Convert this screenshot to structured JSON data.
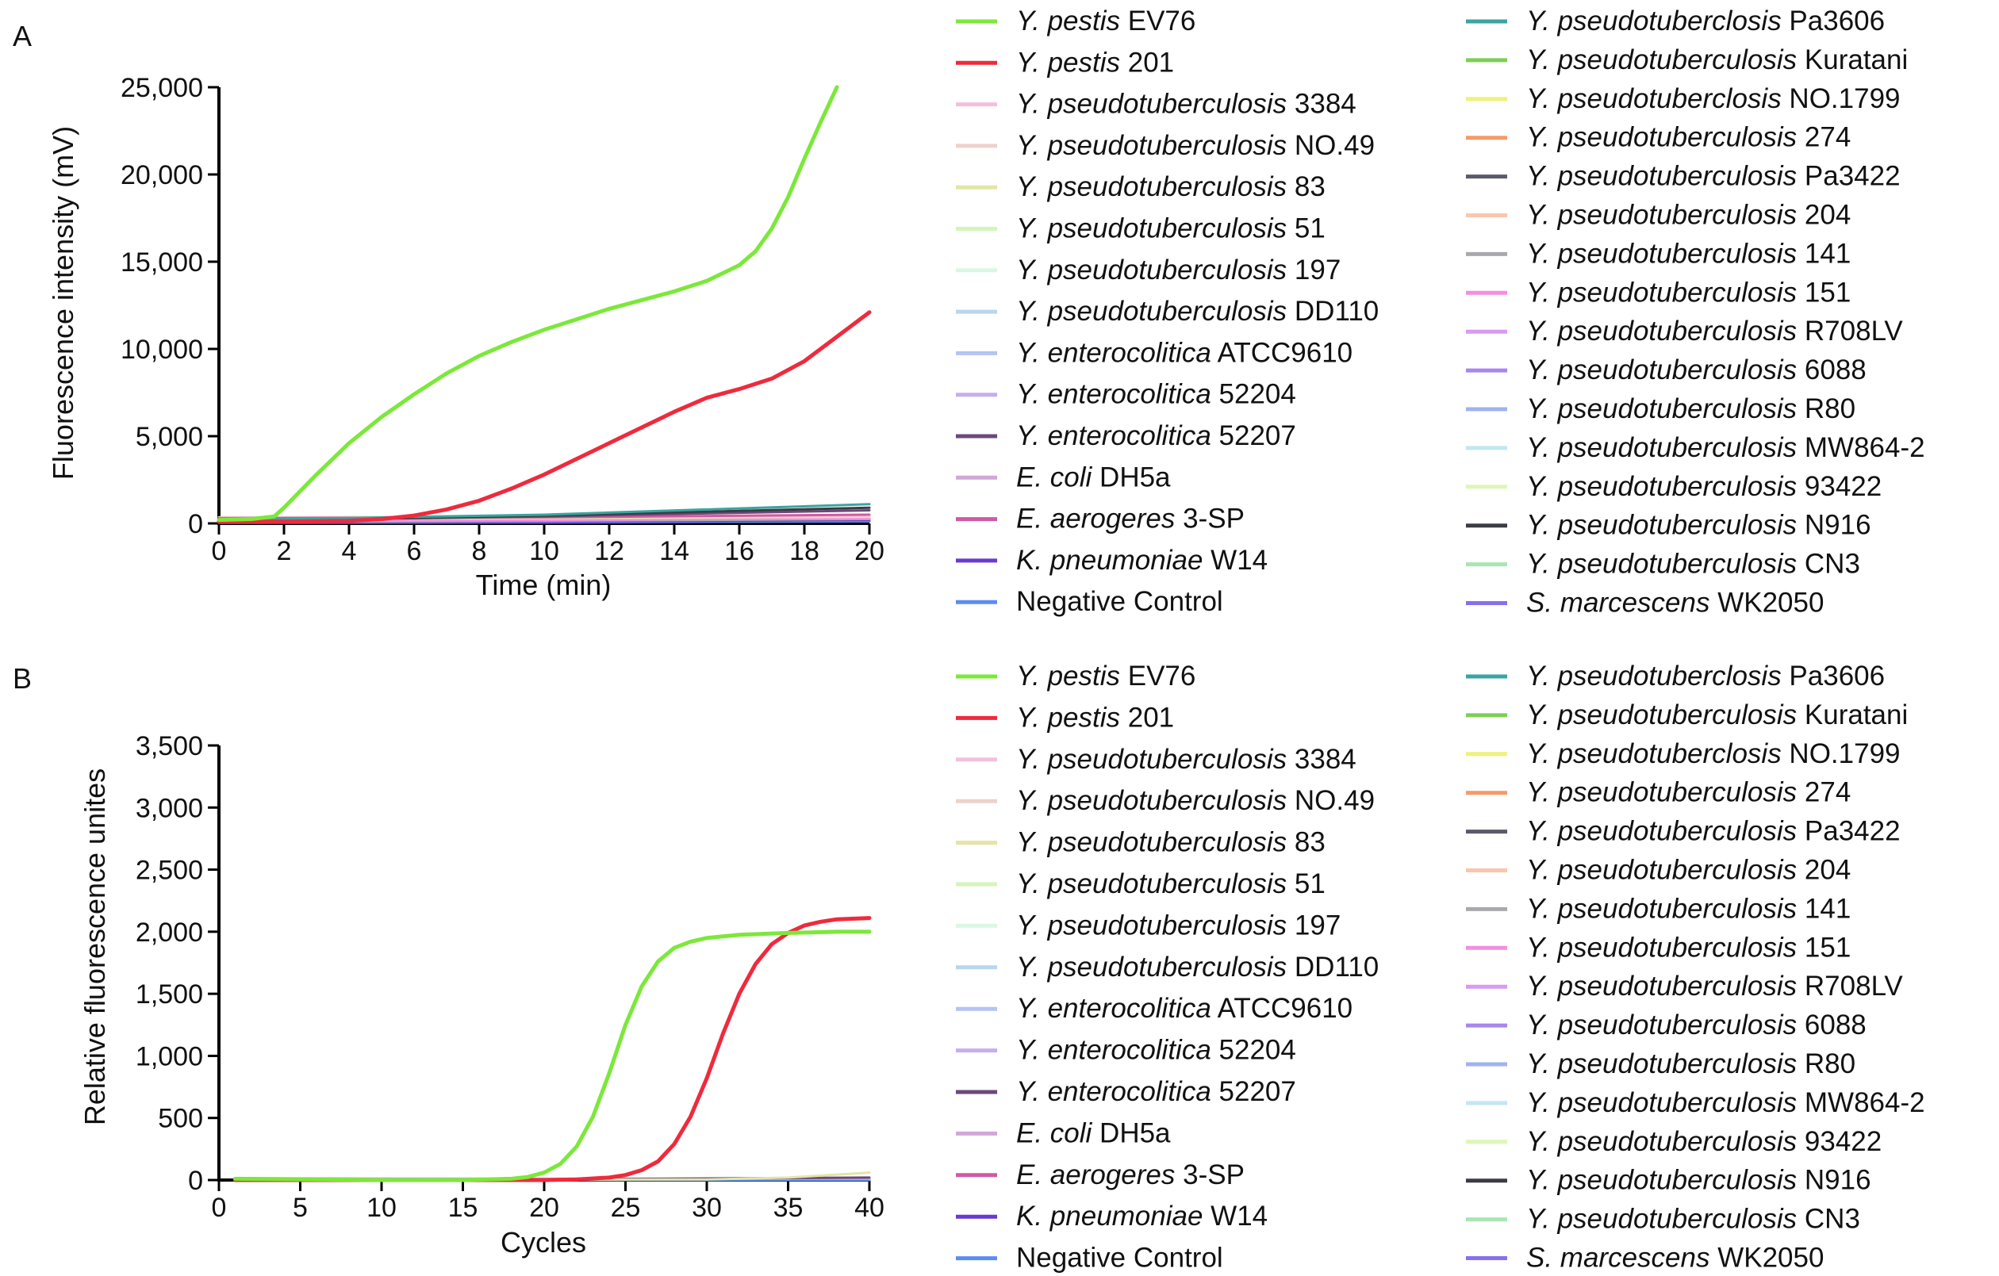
{
  "colors": {
    "Y. pestis EV76": "#7be83a",
    "Y. pestis 201": "#ef2a3c",
    "Y. pseudotuberculosis 3384": "#f3c0dc",
    "Y. pseudotuberculosis NO.49": "#eed2cc",
    "Y. pseudotuberculosis 83": "#e3e5a6",
    "Y. pseudotuberculosis 51": "#d4f5b8",
    "Y. pseudotuberculosis 197": "#d9f8e3",
    "Y. pseudotuberculosis DD110": "#b8d6ef",
    "Y. enterocolitica ATCC9610": "#b3c4f4",
    "Y. enterocolitica 52204": "#c6aef0",
    "Y. enterocolitica 52207": "#6a4a78",
    "E. coli DH5a": "#d3a6d9",
    "E. aerogeres 3-SP": "#cf5aa6",
    "K. pneumoniae W14": "#6a3ad1",
    "Negative Control": "#5b8cf2",
    "Y. pseudotuberclosis Pa3606": "#3aa5a0",
    "Y. pseudotuberculosis Kuratani": "#7ecf55",
    "Y. pseudotuberclosis NO.1799": "#eef27a",
    "Y. pseudotuberculosis 274": "#f59a6a",
    "Y. pseudotuberculosis Pa3422": "#5a5a6a",
    "Y. pseudotuberculosis 204": "#f9c6ae",
    "Y. pseudotuberculosis 141": "#a9a9ad",
    "Y. pseudotuberculosis 151": "#f48ee0",
    "Y. pseudotuberculosis R708LV": "#d89af2",
    "Y. pseudotuberculosis 6088": "#a786ee",
    "Y. pseudotuberculosis R80": "#9fb3ee",
    "Y. pseudotuberculosis MW864-2": "#c2e6f4",
    "Y. pseudotuberculosis 93422": "#dff6b6",
    "Y. pseudotuberculosis N916": "#3c3c44",
    "Y. pseudotuberculosis CN3": "#a8e6b4",
    "S. marcescens WK2050": "#8a6ef0"
  },
  "legend_col1": [
    {
      "it": "Y. pestis",
      "rest": " EV76",
      "key": "Y. pestis EV76"
    },
    {
      "it": "Y. pestis",
      "rest": " 201",
      "key": "Y. pestis 201"
    },
    {
      "it": "Y. pseudotuberculosis",
      "rest": " 3384",
      "key": "Y. pseudotuberculosis 3384"
    },
    {
      "it": "Y. pseudotuberculosis",
      "rest": " NO.49",
      "key": "Y. pseudotuberculosis NO.49"
    },
    {
      "it": "Y. pseudotuberculosis",
      "rest": " 83",
      "key": "Y. pseudotuberculosis 83"
    },
    {
      "it": "Y. pseudotuberculosis",
      "rest": " 51",
      "key": "Y. pseudotuberculosis 51"
    },
    {
      "it": "Y. pseudotuberculosis",
      "rest": " 197",
      "key": "Y. pseudotuberculosis 197"
    },
    {
      "it": "Y. pseudotuberculosis",
      "rest": " DD110",
      "key": "Y. pseudotuberculosis DD110"
    },
    {
      "it": "Y. enterocolitica",
      "rest": " ATCC9610",
      "key": "Y. enterocolitica ATCC9610"
    },
    {
      "it": "Y. enterocolitica",
      "rest": " 52204",
      "key": "Y. enterocolitica 52204"
    },
    {
      "it": "Y. enterocolitica",
      "rest": " 52207",
      "key": "Y. enterocolitica 52207"
    },
    {
      "it": "E. coli",
      "rest": " DH5a",
      "key": "E. coli DH5a"
    },
    {
      "it": "E. aerogeres",
      "rest": " 3-SP",
      "key": "E. aerogeres 3-SP"
    },
    {
      "it": "K. pneumoniae",
      "rest": " W14",
      "key": "K. pneumoniae W14"
    },
    {
      "it": "",
      "rest": "Negative Control",
      "key": "Negative Control"
    }
  ],
  "legend_col2": [
    {
      "it": "Y. pseudotuberclosis",
      "rest": " Pa3606",
      "key": "Y. pseudotuberclosis Pa3606"
    },
    {
      "it": "Y. pseudotuberculosis",
      "rest": " Kuratani",
      "key": "Y. pseudotuberculosis Kuratani"
    },
    {
      "it": "Y. pseudotuberclosis",
      "rest": " NO.1799",
      "key": "Y. pseudotuberclosis NO.1799"
    },
    {
      "it": "Y. pseudotuberculosis",
      "rest": " 274",
      "key": "Y. pseudotuberculosis 274"
    },
    {
      "it": "Y. pseudotuberculosis",
      "rest": " Pa3422",
      "key": "Y. pseudotuberculosis Pa3422"
    },
    {
      "it": "Y. pseudotuberculosis",
      "rest": " 204",
      "key": "Y. pseudotuberculosis 204"
    },
    {
      "it": "Y. pseudotuberculosis",
      "rest": " 141",
      "key": "Y. pseudotuberculosis 141"
    },
    {
      "it": "Y. pseudotuberculosis",
      "rest": " 151",
      "key": "Y. pseudotuberculosis 151"
    },
    {
      "it": "Y. pseudotuberculosis",
      "rest": " R708LV",
      "key": "Y. pseudotuberculosis R708LV"
    },
    {
      "it": "Y. pseudotuberculosis",
      "rest": " 6088",
      "key": "Y. pseudotuberculosis 6088"
    },
    {
      "it": "Y. pseudotuberculosis",
      "rest": " R80",
      "key": "Y. pseudotuberculosis R80"
    },
    {
      "it": "Y. pseudotuberculosis",
      "rest": " MW864-2",
      "key": "Y. pseudotuberculosis MW864-2"
    },
    {
      "it": "Y. pseudotuberculosis",
      "rest": " 93422",
      "key": "Y. pseudotuberculosis 93422"
    },
    {
      "it": "Y. pseudotuberculosis",
      "rest": " N916",
      "key": "Y. pseudotuberculosis N916"
    },
    {
      "it": "Y. pseudotuberculosis",
      "rest": " CN3",
      "key": "Y. pseudotuberculosis CN3"
    },
    {
      "it": "S. marcescens",
      "rest": " WK2050",
      "key": "S. marcescens WK2050"
    }
  ],
  "chart_data": [
    {
      "panel_label": "A",
      "type": "line",
      "xlabel": "Time (min)",
      "ylabel": "Fluorescence intensity (mV)",
      "xlim": [
        0,
        20
      ],
      "ylim": [
        0,
        25000
      ],
      "xticks": [
        0,
        2,
        4,
        6,
        8,
        10,
        12,
        14,
        16,
        18,
        20
      ],
      "yticks": [
        0,
        5000,
        10000,
        15000,
        20000,
        25000
      ],
      "ytick_labels": [
        "0",
        "5,000",
        "10,000",
        "15,000",
        "20,000",
        "25,000"
      ],
      "series": [
        {
          "name": "Y. pestis EV76",
          "x": [
            0,
            1,
            1.7,
            2,
            3,
            4,
            5,
            6,
            7,
            8,
            9,
            10,
            11,
            12,
            13,
            14,
            15,
            16,
            16.5,
            17,
            17.5,
            18,
            18.5,
            19
          ],
          "y": [
            200,
            250,
            400,
            900,
            2800,
            4600,
            6100,
            7400,
            8600,
            9600,
            10400,
            11100,
            11700,
            12300,
            12800,
            13300,
            13900,
            14800,
            15600,
            16900,
            18700,
            20900,
            23000,
            25000
          ]
        },
        {
          "name": "Y. pestis 201",
          "x": [
            0,
            2,
            4,
            5,
            6,
            7,
            8,
            9,
            10,
            11,
            12,
            13,
            14,
            15,
            16,
            17,
            18,
            19,
            20
          ],
          "y": [
            100,
            100,
            150,
            250,
            450,
            800,
            1300,
            2000,
            2800,
            3700,
            4600,
            5500,
            6400,
            7200,
            7700,
            8300,
            9300,
            10700,
            12100
          ]
        },
        {
          "name": "Y. pseudotuberclosis Pa3606",
          "x": [
            0,
            10,
            20
          ],
          "y": [
            180,
            500,
            1100
          ]
        },
        {
          "name": "Y. pseudotuberculosis N916",
          "x": [
            0,
            10,
            20
          ],
          "y": [
            100,
            450,
            900
          ]
        },
        {
          "name": "Y. enterocolitica 52207",
          "x": [
            0,
            10,
            20
          ],
          "y": [
            150,
            400,
            750
          ]
        },
        {
          "name": "E. aerogeres 3-SP",
          "x": [
            0,
            10,
            20
          ],
          "y": [
            300,
            350,
            500
          ]
        },
        {
          "name": "Y. pseudotuberculosis NO.49",
          "x": [
            0,
            10,
            20
          ],
          "y": [
            350,
            380,
            420
          ]
        },
        {
          "name": "Y. pseudotuberculosis 83",
          "x": [
            0,
            10,
            20
          ],
          "y": [
            250,
            300,
            380
          ]
        },
        {
          "name": "Y. pseudotuberculosis 151",
          "x": [
            0,
            10,
            20
          ],
          "y": [
            150,
            200,
            300
          ]
        },
        {
          "name": "Y. pseudotuberculosis 141",
          "x": [
            0,
            10,
            20
          ],
          "y": [
            80,
            150,
            250
          ]
        },
        {
          "name": "K. pneumoniae W14",
          "x": [
            0,
            10,
            20
          ],
          "y": [
            50,
            100,
            200
          ]
        },
        {
          "name": "Negative Control",
          "x": [
            0,
            10,
            20
          ],
          "y": [
            30,
            60,
            120
          ]
        }
      ]
    },
    {
      "panel_label": "B",
      "type": "line",
      "xlabel": "Cycles",
      "ylabel": "Relative fluorescence unites",
      "xlim": [
        0,
        40
      ],
      "ylim": [
        0,
        3500
      ],
      "xticks": [
        0,
        5,
        10,
        15,
        20,
        25,
        30,
        35,
        40
      ],
      "yticks": [
        0,
        500,
        1000,
        1500,
        2000,
        2500,
        3000,
        3500
      ],
      "ytick_labels": [
        "0",
        "500",
        "1,000",
        "1,500",
        "2,000",
        "2,500",
        "3,000",
        "3,500"
      ],
      "series": [
        {
          "name": "Y. pestis EV76",
          "x": [
            1,
            10,
            15,
            18,
            19,
            20,
            21,
            22,
            23,
            24,
            25,
            26,
            27,
            28,
            29,
            30,
            32,
            35,
            38,
            40
          ],
          "y": [
            10,
            0,
            0,
            10,
            25,
            60,
            130,
            270,
            510,
            860,
            1250,
            1560,
            1760,
            1870,
            1920,
            1950,
            1975,
            1990,
            2000,
            2000
          ]
        },
        {
          "name": "Y. pestis 201",
          "x": [
            1,
            20,
            22,
            24,
            25,
            26,
            27,
            28,
            29,
            30,
            31,
            32,
            33,
            34,
            35,
            36,
            37,
            38,
            40
          ],
          "y": [
            0,
            0,
            5,
            20,
            40,
            80,
            150,
            290,
            510,
            820,
            1180,
            1500,
            1740,
            1900,
            1990,
            2050,
            2080,
            2100,
            2110
          ]
        },
        {
          "name": "Y. pseudotuberculosis 83",
          "x": [
            1,
            30,
            35,
            40
          ],
          "y": [
            0,
            5,
            20,
            60
          ]
        },
        {
          "name": "Y. enterocolitica 52207",
          "x": [
            1,
            20,
            40
          ],
          "y": [
            0,
            5,
            20
          ]
        },
        {
          "name": "E. coli DH5a",
          "x": [
            1,
            20,
            40
          ],
          "y": [
            15,
            10,
            10
          ]
        },
        {
          "name": "Negative Control",
          "x": [
            1,
            40
          ],
          "y": [
            0,
            0
          ]
        }
      ]
    }
  ]
}
